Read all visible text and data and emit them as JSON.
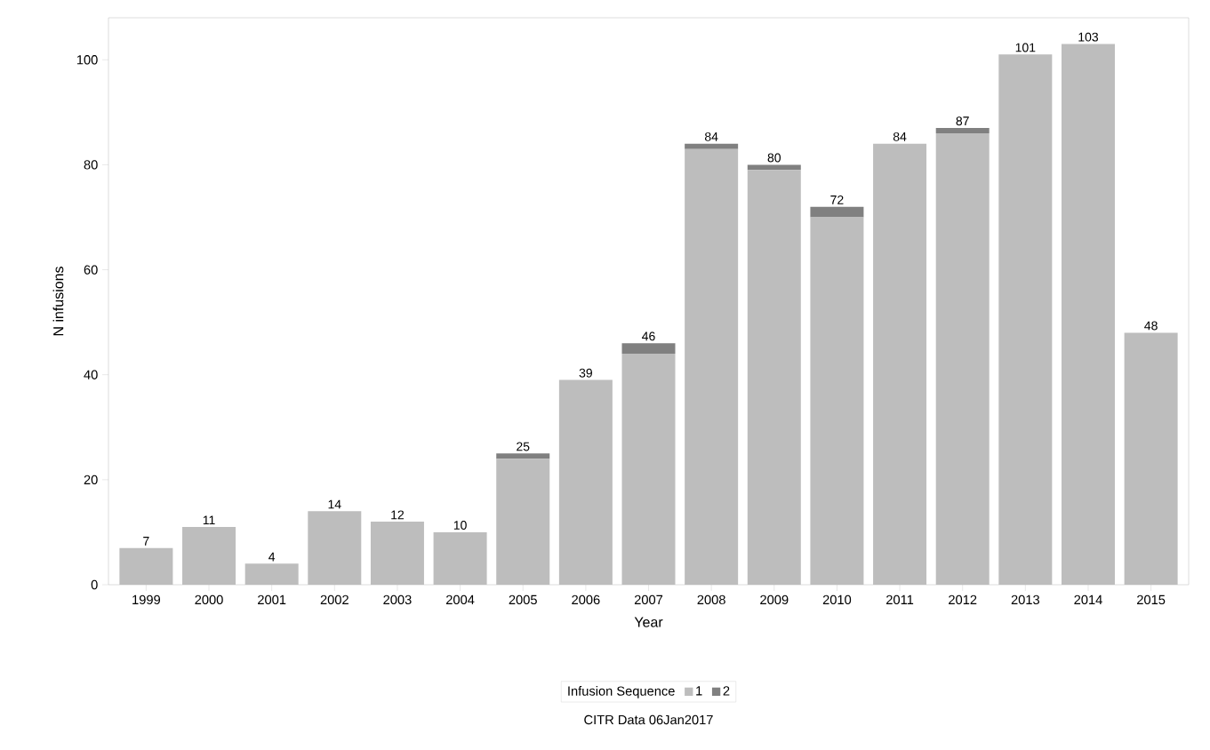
{
  "chart_data": {
    "type": "bar",
    "stacked": true,
    "xlabel": "Year",
    "ylabel": "N infusions",
    "legend_title": "Infusion Sequence",
    "legend": "bottom",
    "categories": [
      "1999",
      "2000",
      "2001",
      "2002",
      "2003",
      "2004",
      "2005",
      "2006",
      "2007",
      "2008",
      "2009",
      "2010",
      "2011",
      "2012",
      "2013",
      "2014",
      "2015"
    ],
    "series": [
      {
        "name": "1",
        "color": "#bdbdbd",
        "values": [
          7,
          11,
          4,
          14,
          12,
          10,
          24,
          39,
          44,
          83,
          79,
          70,
          84,
          86,
          101,
          103,
          48
        ]
      },
      {
        "name": "2",
        "color": "#808080",
        "values": [
          0,
          0,
          0,
          0,
          0,
          0,
          1,
          0,
          2,
          1,
          1,
          2,
          0,
          1,
          0,
          0,
          0
        ]
      }
    ],
    "totals": [
      "7",
      "11",
      "4",
      "14",
      "12",
      "10",
      "25",
      "39",
      "46",
      "84",
      "80",
      "72",
      "84",
      "87",
      "101",
      "103",
      "48"
    ],
    "ylim": [
      0,
      108
    ],
    "yticks": [
      0,
      20,
      40,
      60,
      80,
      100
    ],
    "grid": false,
    "annotations": [
      "CITR  Data 06Jan2017"
    ]
  }
}
